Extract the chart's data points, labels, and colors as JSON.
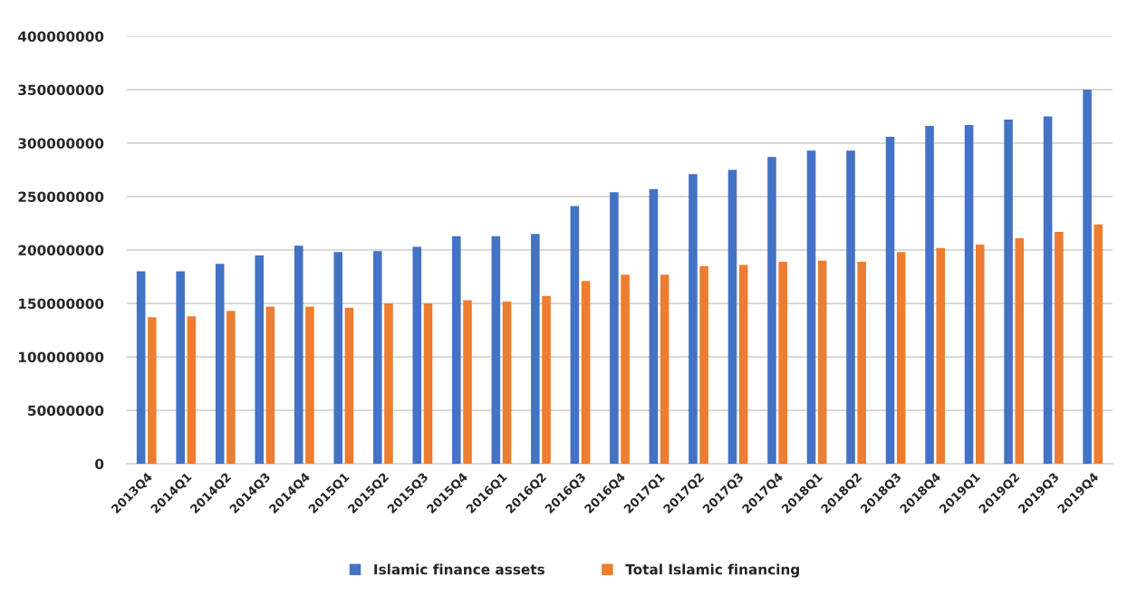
{
  "chart_data": {
    "type": "bar",
    "categories": [
      "2013Q4",
      "2014Q1",
      "2014Q2",
      "2014Q3",
      "2014Q4",
      "2015Q1",
      "2015Q2",
      "2015Q3",
      "2015Q4",
      "2016Q1",
      "2016Q2",
      "2016Q3",
      "2016Q4",
      "2017Q1",
      "2017Q2",
      "2017Q3",
      "2017Q4",
      "2018Q1",
      "2018Q2",
      "2018Q3",
      "2018Q4",
      "2019Q1",
      "2019Q2",
      "2019Q3",
      "2019Q4"
    ],
    "series": [
      {
        "name": "Islamic finance assets",
        "color": "#4472c4",
        "values": [
          180000000,
          180000000,
          187000000,
          195000000,
          204000000,
          198000000,
          199000000,
          203000000,
          213000000,
          213000000,
          215000000,
          241000000,
          254000000,
          257000000,
          271000000,
          275000000,
          287000000,
          293000000,
          293000000,
          306000000,
          316000000,
          317000000,
          322000000,
          325000000,
          350000000
        ]
      },
      {
        "name": "Total Islamic financing",
        "color": "#ed7d31",
        "values": [
          137000000,
          138000000,
          143000000,
          147000000,
          147000000,
          146000000,
          150000000,
          150000000,
          153000000,
          152000000,
          157000000,
          171000000,
          177000000,
          177000000,
          185000000,
          186000000,
          189000000,
          190000000,
          189000000,
          198000000,
          202000000,
          205000000,
          211000000,
          217000000,
          224000000
        ]
      }
    ],
    "ylim": [
      0,
      400000000
    ],
    "yticks": [
      0,
      50000000,
      100000000,
      150000000,
      200000000,
      250000000,
      300000000,
      350000000,
      400000000
    ],
    "grid": "y",
    "legend": "bottom"
  }
}
